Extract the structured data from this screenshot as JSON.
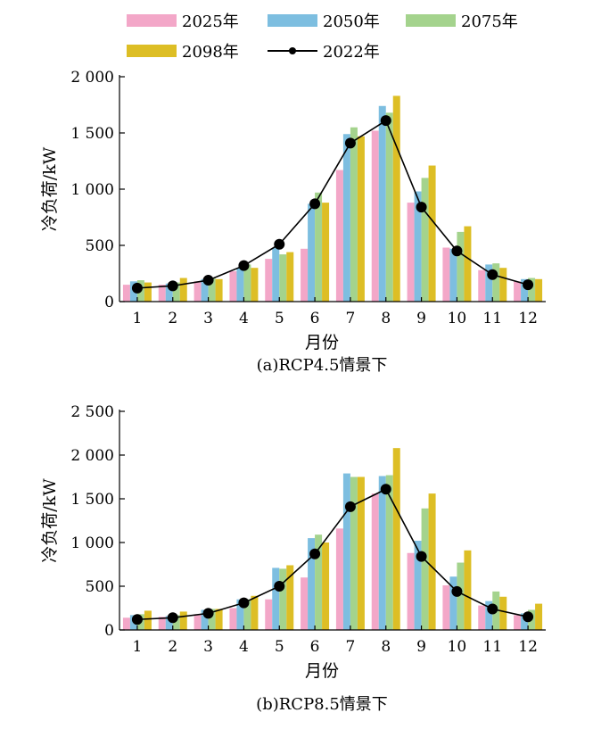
{
  "legend": {
    "items": [
      {
        "label": "2025年",
        "color": "#F3A7C8",
        "kind": "bar"
      },
      {
        "label": "2050年",
        "color": "#7DBEE0",
        "kind": "bar"
      },
      {
        "label": "2075年",
        "color": "#A4D38D",
        "kind": "bar"
      },
      {
        "label": "2098年",
        "color": "#DDBE25",
        "kind": "bar"
      },
      {
        "label": "2022年",
        "color": "#000000",
        "kind": "line"
      }
    ]
  },
  "chart_data": [
    {
      "type": "bar",
      "caption": "(a)RCP4.5情景下",
      "xlabel": "月份",
      "ylabel": "冷负荷/kW",
      "categories": [
        "1",
        "2",
        "3",
        "4",
        "5",
        "6",
        "7",
        "8",
        "9",
        "10",
        "11",
        "12"
      ],
      "ylim": [
        0,
        2000
      ],
      "yticks": [
        0,
        500,
        1000,
        1500,
        2000
      ],
      "ytick_labels": [
        "0",
        "500",
        "1 000",
        "1 500",
        "2 000"
      ],
      "series": [
        {
          "name": "2025年",
          "values": [
            150,
            150,
            180,
            270,
            380,
            470,
            1170,
            1520,
            880,
            480,
            280,
            180
          ]
        },
        {
          "name": "2050年",
          "values": [
            180,
            160,
            200,
            300,
            480,
            870,
            1490,
            1740,
            980,
            470,
            330,
            200
          ]
        },
        {
          "name": "2075年",
          "values": [
            190,
            170,
            210,
            330,
            420,
            970,
            1550,
            1680,
            1100,
            620,
            340,
            210
          ]
        },
        {
          "name": "2098年",
          "values": [
            170,
            210,
            200,
            300,
            440,
            880,
            1470,
            1830,
            1210,
            670,
            300,
            200
          ]
        },
        {
          "name": "2022年",
          "type": "line",
          "values": [
            120,
            140,
            190,
            320,
            510,
            870,
            1410,
            1610,
            840,
            450,
            240,
            150
          ]
        }
      ]
    },
    {
      "type": "bar",
      "caption": "(b)RCP8.5情景下",
      "xlabel": "月份",
      "ylabel": "冷负荷/kW",
      "categories": [
        "1",
        "2",
        "3",
        "4",
        "5",
        "6",
        "7",
        "8",
        "9",
        "10",
        "11",
        "12"
      ],
      "ylim": [
        0,
        2500
      ],
      "yticks": [
        0,
        500,
        1000,
        1500,
        2000,
        2500
      ],
      "ytick_labels": [
        "0",
        "500",
        "1 000",
        "1 500",
        "2 000",
        "2 500"
      ],
      "series": [
        {
          "name": "2025年",
          "values": [
            140,
            150,
            180,
            250,
            350,
            600,
            1160,
            1560,
            880,
            510,
            280,
            170
          ]
        },
        {
          "name": "2050年",
          "values": [
            170,
            160,
            230,
            350,
            710,
            1050,
            1790,
            1760,
            1020,
            610,
            330,
            190
          ]
        },
        {
          "name": "2075年",
          "values": [
            180,
            170,
            240,
            350,
            700,
            1090,
            1750,
            1770,
            1390,
            770,
            440,
            230
          ]
        },
        {
          "name": "2098年",
          "values": [
            220,
            210,
            240,
            390,
            740,
            1000,
            1750,
            2080,
            1560,
            910,
            380,
            300
          ]
        },
        {
          "name": "2022年",
          "type": "line",
          "values": [
            120,
            140,
            190,
            310,
            500,
            870,
            1410,
            1610,
            840,
            440,
            240,
            150
          ]
        }
      ]
    }
  ]
}
